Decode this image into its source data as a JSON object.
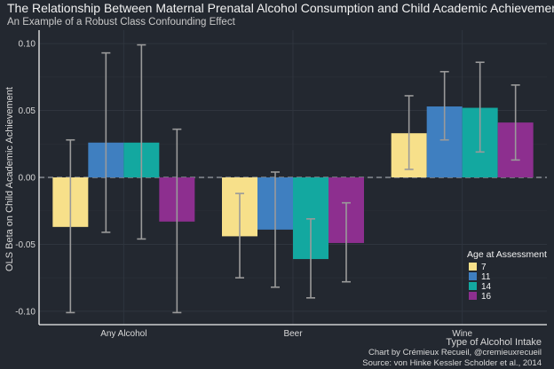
{
  "chart_data": {
    "type": "bar",
    "title": "The Relationship Between Maternal Prenatal Alcohol Consumption and Child Academic Achievement",
    "subtitle": "An Example of a Robust Class Confounding Effect",
    "xlabel": "Type of Alcohol Intake",
    "ylabel": "OLS Beta on Child Academic Achievement",
    "ylim": [
      -0.11,
      0.11
    ],
    "yticks": [
      "0.10",
      "0.05",
      "0.00",
      "-0.05",
      "-0.10"
    ],
    "ytick_values": [
      0.1,
      0.05,
      0.0,
      -0.05,
      -0.1
    ],
    "categories": [
      "Any Alcohol",
      "Beer",
      "Wine"
    ],
    "reference_line": 0.0,
    "grid": true,
    "legend": {
      "title": "Age at Assessment",
      "position": "bottom-right"
    },
    "series": [
      {
        "name": "7",
        "color": "#f7e08a",
        "values": [
          -0.037,
          -0.044,
          0.033
        ],
        "ci_low": [
          -0.101,
          -0.075,
          0.006
        ],
        "ci_high": [
          0.028,
          -0.012,
          0.061
        ]
      },
      {
        "name": "11",
        "color": "#3f7fc0",
        "values": [
          0.026,
          -0.039,
          0.053
        ],
        "ci_low": [
          -0.041,
          -0.082,
          0.028
        ],
        "ci_high": [
          0.093,
          0.004,
          0.079
        ]
      },
      {
        "name": "14",
        "color": "#13a8a0",
        "values": [
          0.026,
          -0.061,
          0.052
        ],
        "ci_low": [
          -0.046,
          -0.09,
          0.019
        ],
        "ci_high": [
          0.099,
          -0.031,
          0.086
        ]
      },
      {
        "name": "16",
        "color": "#8d2f8f",
        "values": [
          -0.033,
          -0.049,
          0.041
        ],
        "ci_low": [
          -0.101,
          -0.078,
          0.013
        ],
        "ci_high": [
          0.036,
          -0.019,
          0.069
        ]
      }
    ]
  },
  "caption": {
    "line1": "Chart by Crémieux Recueil, @cremieuxrecueil",
    "line2": "Source: von Hinke Kessler Scholder et al., 2014"
  }
}
